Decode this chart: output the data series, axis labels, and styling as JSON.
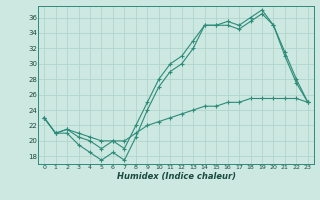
{
  "xlabel": "Humidex (Indice chaleur)",
  "bg_color": "#cce8e0",
  "line_color": "#2d8b7a",
  "grid_color": "#b0d4cc",
  "xlim": [
    -0.5,
    23.5
  ],
  "ylim": [
    17.0,
    37.5
  ],
  "yticks": [
    18,
    20,
    22,
    24,
    26,
    28,
    30,
    32,
    34,
    36
  ],
  "xticks": [
    0,
    1,
    2,
    3,
    4,
    5,
    6,
    7,
    8,
    9,
    10,
    11,
    12,
    13,
    14,
    15,
    16,
    17,
    18,
    19,
    20,
    21,
    22,
    23
  ],
  "line1_x": [
    0,
    1,
    2,
    3,
    4,
    5,
    6,
    7,
    8,
    9,
    10,
    11,
    12,
    13,
    14,
    15,
    16,
    17,
    18,
    19,
    20,
    21,
    22,
    23
  ],
  "line1_y": [
    23,
    21,
    21,
    19.5,
    18.5,
    17.5,
    18.5,
    17.5,
    20.5,
    24,
    27,
    29,
    30,
    32,
    35,
    35,
    35,
    34.5,
    35.5,
    36.5,
    35,
    31,
    27.5,
    25
  ],
  "line2_x": [
    0,
    1,
    2,
    3,
    4,
    5,
    6,
    7,
    8,
    9,
    10,
    11,
    12,
    13,
    14,
    15,
    16,
    17,
    18,
    19,
    20,
    21,
    22,
    23
  ],
  "line2_y": [
    23,
    21,
    21.5,
    20.5,
    20,
    19,
    20,
    19,
    22,
    25,
    28,
    30,
    31,
    33,
    35,
    35,
    35.5,
    35,
    36,
    37,
    35,
    31.5,
    28,
    25
  ],
  "line3_x": [
    0,
    1,
    2,
    3,
    4,
    5,
    6,
    7,
    8,
    9,
    10,
    11,
    12,
    13,
    14,
    15,
    16,
    17,
    18,
    19,
    20,
    21,
    22,
    23
  ],
  "line3_y": [
    23,
    21,
    21.5,
    21,
    20.5,
    20,
    20,
    20,
    21,
    22,
    22.5,
    23,
    23.5,
    24,
    24.5,
    24.5,
    25,
    25,
    25.5,
    25.5,
    25.5,
    25.5,
    25.5,
    25
  ]
}
